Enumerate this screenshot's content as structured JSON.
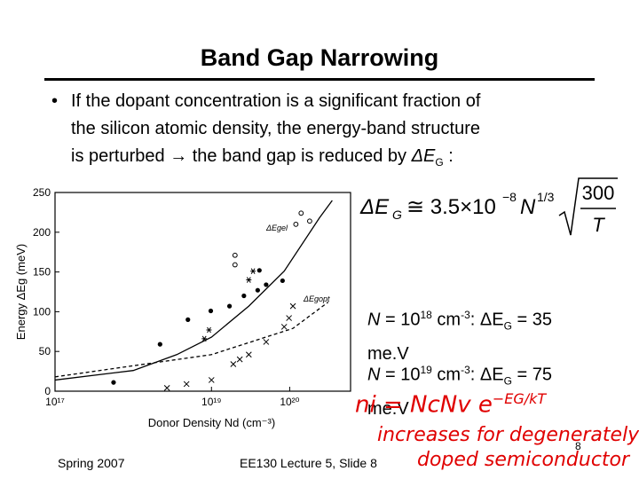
{
  "slide": {
    "title": "Band Gap Narrowing",
    "bullet": [
      "If the dopant concentration is a significant fraction of",
      "the silicon atomic density, the energy-band structure",
      "is perturbed",
      "the band gap is reduced by ",
      "ΔE",
      "G",
      " :"
    ],
    "formula": [
      "ΔE",
      "G",
      "≅ 3.5×10",
      "−8",
      "N",
      "1/3",
      "300",
      "T"
    ],
    "example1": [
      "N",
      " = 10",
      "18",
      " cm",
      "-3",
      ": ΔE",
      "G",
      " = 35",
      "me.V"
    ],
    "example2": [
      "N",
      " = 10",
      "19",
      " cm",
      "-3",
      ": ΔE",
      "G",
      " = 75",
      "me.V"
    ],
    "handwritten_notes": [
      "ni = NcNv e",
      "−EG/kT",
      "increases for degenerately",
      "doped semiconductor"
    ],
    "footer": {
      "left": "Spring 2007",
      "center": "EE130 Lecture 5, Slide 8",
      "page": "8"
    }
  },
  "chart_data": {
    "type": "scatter",
    "xlabel": "Donor Density Nd (cm⁻³)",
    "ylabel": "Energy ΔEg (meV)",
    "annotations": [
      "ΔEgel",
      "ΔEgopt"
    ],
    "xlog": true,
    "xlim": [
      1e+17,
      6e+20
    ],
    "ylim": [
      0,
      250
    ],
    "xticks": [
      {
        "value": 1e+17,
        "label": "10¹⁷"
      },
      {
        "value": 1e+19,
        "label": "10¹⁹"
      },
      {
        "value": 1e+20,
        "label": "10²⁰"
      }
    ],
    "yticks": [
      0,
      50,
      100,
      150,
      200,
      250
    ],
    "series": [
      {
        "marker": "line",
        "color": "#000",
        "x": [
          1e+17,
          1e+18,
          3.6e+18,
          1e+19,
          3e+19,
          8.5e+19,
          2.4e+20,
          3.5e+20
        ],
        "values": [
          14,
          26,
          46,
          68,
          107,
          151,
          218,
          240
        ]
      },
      {
        "marker": "dashed",
        "color": "#000",
        "x": [
          1e+17,
          1e+19,
          1.1e+20,
          3.1e+20
        ],
        "values": [
          18,
          46,
          79,
          112
        ]
      },
      {
        "marker": "dot",
        "color": "#000",
        "x": [
          5.6e+17,
          2.2e+18,
          5e+18,
          9.8e+18,
          1.7e+19,
          2.6e+19,
          3.9e+19,
          5e+19,
          8.1e+19,
          4.1e+19
        ],
        "values": [
          11,
          59,
          90,
          101,
          107,
          120,
          127,
          134,
          139,
          152
        ]
      },
      {
        "marker": "circle",
        "color": "#000",
        "x": [
          1.4e+20,
          1.8e+20,
          1.2e+20,
          2e+19,
          2e+19
        ],
        "values": [
          224,
          214,
          210,
          171,
          159
        ]
      },
      {
        "marker": "cross",
        "color": "#000",
        "x": [
          2.7e+18,
          4.8e+18,
          1e+19,
          1.9e+19,
          2.3e+19,
          3e+19,
          5e+19,
          8.5e+19,
          9.8e+19,
          1.1e+20
        ],
        "values": [
          4,
          9,
          14,
          34,
          40,
          46,
          62,
          81,
          92,
          107
        ]
      },
      {
        "marker": "asterisk",
        "color": "#000",
        "x": [
          8.1e+18,
          9.3e+18,
          3e+19,
          3.4e+19
        ],
        "values": [
          66,
          77,
          140,
          151
        ]
      }
    ]
  }
}
